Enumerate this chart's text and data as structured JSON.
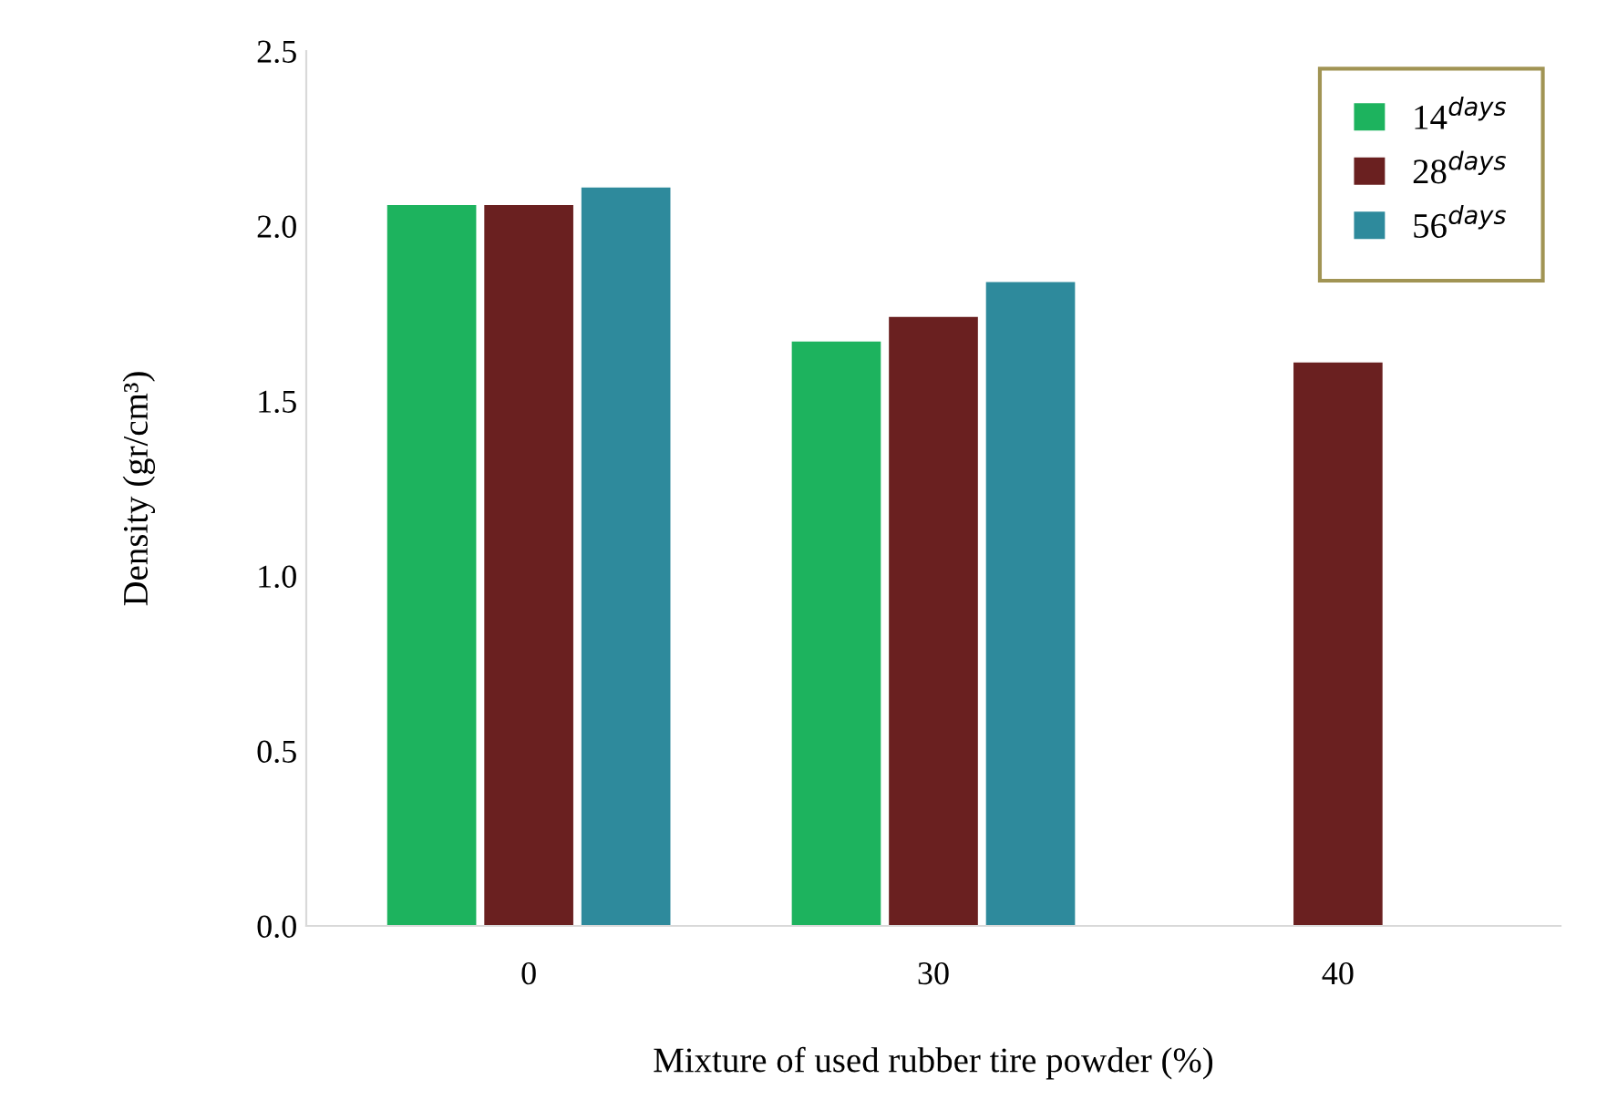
{
  "chart_data": {
    "type": "bar",
    "xlabel": "Mixture of used rubber tire powder (%)",
    "ylabel": "Density (gr/cm³)",
    "categories": [
      "0",
      "30",
      "40"
    ],
    "series": [
      {
        "name": "14$^{days}$",
        "color": "#1db35e",
        "values": [
          2.06,
          1.67,
          null
        ]
      },
      {
        "name": "28$^{days}$",
        "color": "#6a2020",
        "values": [
          2.06,
          1.74,
          1.61
        ]
      },
      {
        "name": "56$^{days}$",
        "color": "#2e8a9c",
        "values": [
          2.11,
          1.84,
          null
        ]
      }
    ],
    "ylim": [
      0,
      2.5
    ],
    "yticks": [
      {
        "value": 0,
        "label": "0.0"
      },
      {
        "value": 0.5,
        "label": "0.5"
      },
      {
        "value": 1,
        "label": "1.0"
      },
      {
        "value": 1.5,
        "label": "1.5"
      },
      {
        "value": 2,
        "label": "2.0"
      },
      {
        "value": 2.5,
        "label": "2.5"
      }
    ],
    "grid": false,
    "legend": "top right"
  }
}
